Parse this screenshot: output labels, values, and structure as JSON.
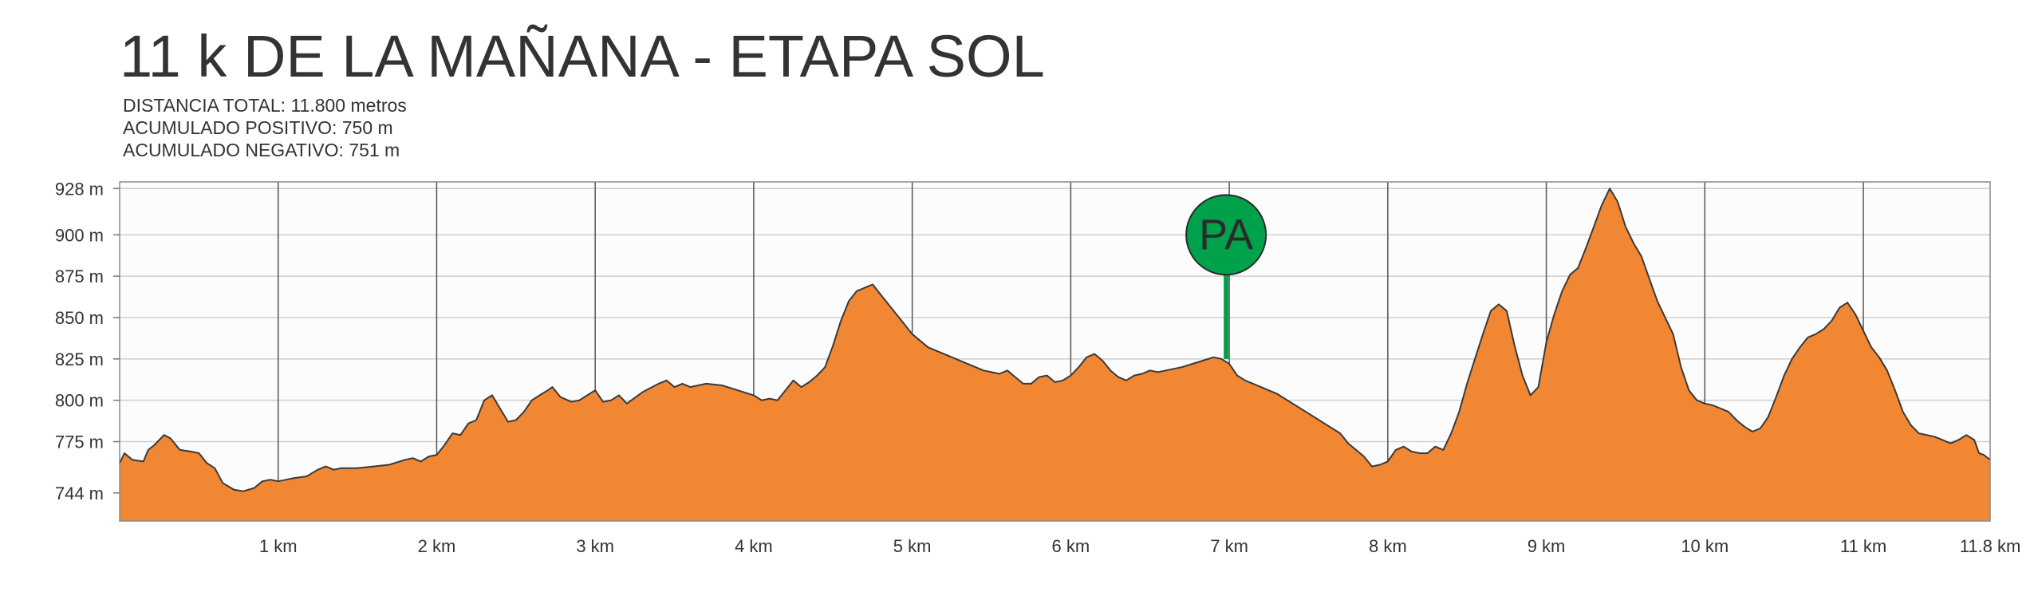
{
  "title": "11 k DE LA MAÑANA - ETAPA SOL",
  "stats": {
    "distance": "DISTANCIA TOTAL: 11.800 metros",
    "ascent": "ACUMULADO POSITIVO: 750 m",
    "descent": "ACUMULADO NEGATIVO: 751 m"
  },
  "colors": {
    "fill": "#f28733",
    "outline": "#3a3a3a",
    "grid": "#cfcfcf",
    "km_line": "#555555",
    "marker": "#00a14b",
    "plot_bg": "#fcfcfc"
  },
  "chart_data": {
    "type": "area",
    "xlim": [
      0,
      11.8
    ],
    "ylim": [
      727,
      932
    ],
    "y_ticks": [
      {
        "value": 928,
        "label": "928 m"
      },
      {
        "value": 900,
        "label": "900 m"
      },
      {
        "value": 875,
        "label": "875 m"
      },
      {
        "value": 850,
        "label": "850 m"
      },
      {
        "value": 825,
        "label": "825 m"
      },
      {
        "value": 800,
        "label": "800 m"
      },
      {
        "value": 775,
        "label": "775 m"
      },
      {
        "value": 744,
        "label": "744 m"
      }
    ],
    "x_ticks": [
      {
        "value": 1,
        "label": "1 km"
      },
      {
        "value": 2,
        "label": "2 km"
      },
      {
        "value": 3,
        "label": "3 km"
      },
      {
        "value": 4,
        "label": "4 km"
      },
      {
        "value": 5,
        "label": "5 km"
      },
      {
        "value": 6,
        "label": "6 km"
      },
      {
        "value": 7,
        "label": "7 km"
      },
      {
        "value": 8,
        "label": "8 km"
      },
      {
        "value": 9,
        "label": "9 km"
      },
      {
        "value": 10,
        "label": "10 km"
      },
      {
        "value": 11,
        "label": "11 km"
      },
      {
        "value": 11.8,
        "label": "11.8 km"
      }
    ],
    "marker": {
      "label": "PA",
      "x": 6.98,
      "y": 825
    },
    "profile": [
      [
        0.0,
        762
      ],
      [
        0.03,
        768
      ],
      [
        0.08,
        764
      ],
      [
        0.15,
        763
      ],
      [
        0.18,
        770
      ],
      [
        0.22,
        773
      ],
      [
        0.28,
        779
      ],
      [
        0.32,
        777
      ],
      [
        0.38,
        770
      ],
      [
        0.45,
        769
      ],
      [
        0.5,
        768
      ],
      [
        0.55,
        762
      ],
      [
        0.6,
        759
      ],
      [
        0.65,
        750
      ],
      [
        0.72,
        746
      ],
      [
        0.78,
        745
      ],
      [
        0.85,
        747
      ],
      [
        0.9,
        751
      ],
      [
        0.95,
        752
      ],
      [
        1.0,
        751
      ],
      [
        1.05,
        752
      ],
      [
        1.1,
        753
      ],
      [
        1.18,
        754
      ],
      [
        1.25,
        758
      ],
      [
        1.3,
        760
      ],
      [
        1.35,
        758
      ],
      [
        1.4,
        759
      ],
      [
        1.5,
        759
      ],
      [
        1.6,
        760
      ],
      [
        1.7,
        761
      ],
      [
        1.8,
        764
      ],
      [
        1.85,
        765
      ],
      [
        1.9,
        763
      ],
      [
        1.95,
        766
      ],
      [
        2.0,
        767
      ],
      [
        2.05,
        773
      ],
      [
        2.1,
        780
      ],
      [
        2.15,
        779
      ],
      [
        2.2,
        786
      ],
      [
        2.25,
        788
      ],
      [
        2.3,
        800
      ],
      [
        2.35,
        803
      ],
      [
        2.4,
        795
      ],
      [
        2.45,
        787
      ],
      [
        2.5,
        788
      ],
      [
        2.55,
        793
      ],
      [
        2.6,
        800
      ],
      [
        2.65,
        803
      ],
      [
        2.7,
        806
      ],
      [
        2.73,
        808
      ],
      [
        2.78,
        802
      ],
      [
        2.85,
        799
      ],
      [
        2.9,
        800
      ],
      [
        2.95,
        803
      ],
      [
        3.0,
        806
      ],
      [
        3.05,
        799
      ],
      [
        3.1,
        800
      ],
      [
        3.15,
        803
      ],
      [
        3.2,
        798
      ],
      [
        3.3,
        805
      ],
      [
        3.4,
        810
      ],
      [
        3.45,
        812
      ],
      [
        3.5,
        808
      ],
      [
        3.55,
        810
      ],
      [
        3.6,
        808
      ],
      [
        3.7,
        810
      ],
      [
        3.8,
        809
      ],
      [
        3.9,
        806
      ],
      [
        4.0,
        803
      ],
      [
        4.05,
        800
      ],
      [
        4.1,
        801
      ],
      [
        4.15,
        800
      ],
      [
        4.2,
        806
      ],
      [
        4.25,
        812
      ],
      [
        4.3,
        808
      ],
      [
        4.35,
        811
      ],
      [
        4.4,
        815
      ],
      [
        4.45,
        820
      ],
      [
        4.5,
        833
      ],
      [
        4.55,
        848
      ],
      [
        4.6,
        860
      ],
      [
        4.65,
        866
      ],
      [
        4.7,
        868
      ],
      [
        4.75,
        870
      ],
      [
        4.8,
        864
      ],
      [
        4.85,
        858
      ],
      [
        4.9,
        852
      ],
      [
        4.95,
        846
      ],
      [
        5.0,
        840
      ],
      [
        5.1,
        832
      ],
      [
        5.2,
        828
      ],
      [
        5.3,
        824
      ],
      [
        5.4,
        820
      ],
      [
        5.45,
        818
      ],
      [
        5.5,
        817
      ],
      [
        5.55,
        816
      ],
      [
        5.6,
        818
      ],
      [
        5.65,
        814
      ],
      [
        5.7,
        810
      ],
      [
        5.75,
        810
      ],
      [
        5.8,
        814
      ],
      [
        5.85,
        815
      ],
      [
        5.9,
        811
      ],
      [
        5.95,
        812
      ],
      [
        6.0,
        815
      ],
      [
        6.05,
        820
      ],
      [
        6.1,
        826
      ],
      [
        6.15,
        828
      ],
      [
        6.2,
        824
      ],
      [
        6.25,
        818
      ],
      [
        6.3,
        814
      ],
      [
        6.35,
        812
      ],
      [
        6.4,
        815
      ],
      [
        6.45,
        816
      ],
      [
        6.5,
        818
      ],
      [
        6.55,
        817
      ],
      [
        6.6,
        818
      ],
      [
        6.7,
        820
      ],
      [
        6.8,
        823
      ],
      [
        6.9,
        826
      ],
      [
        6.95,
        825
      ],
      [
        7.0,
        822
      ],
      [
        7.05,
        815
      ],
      [
        7.1,
        812
      ],
      [
        7.15,
        810
      ],
      [
        7.2,
        808
      ],
      [
        7.3,
        804
      ],
      [
        7.4,
        798
      ],
      [
        7.5,
        792
      ],
      [
        7.6,
        786
      ],
      [
        7.7,
        780
      ],
      [
        7.75,
        774
      ],
      [
        7.8,
        770
      ],
      [
        7.85,
        766
      ],
      [
        7.9,
        760
      ],
      [
        7.95,
        761
      ],
      [
        8.0,
        763
      ],
      [
        8.05,
        770
      ],
      [
        8.1,
        772
      ],
      [
        8.15,
        769
      ],
      [
        8.2,
        768
      ],
      [
        8.25,
        768
      ],
      [
        8.3,
        772
      ],
      [
        8.35,
        770
      ],
      [
        8.4,
        780
      ],
      [
        8.45,
        793
      ],
      [
        8.5,
        810
      ],
      [
        8.55,
        825
      ],
      [
        8.6,
        840
      ],
      [
        8.65,
        854
      ],
      [
        8.7,
        858
      ],
      [
        8.75,
        854
      ],
      [
        8.8,
        833
      ],
      [
        8.85,
        815
      ],
      [
        8.9,
        803
      ],
      [
        8.95,
        808
      ],
      [
        9.0,
        835
      ],
      [
        9.05,
        852
      ],
      [
        9.1,
        866
      ],
      [
        9.15,
        876
      ],
      [
        9.2,
        880
      ],
      [
        9.25,
        892
      ],
      [
        9.3,
        905
      ],
      [
        9.35,
        918
      ],
      [
        9.4,
        928
      ],
      [
        9.45,
        920
      ],
      [
        9.5,
        905
      ],
      [
        9.55,
        895
      ],
      [
        9.6,
        887
      ],
      [
        9.7,
        860
      ],
      [
        9.8,
        840
      ],
      [
        9.85,
        820
      ],
      [
        9.9,
        806
      ],
      [
        9.95,
        800
      ],
      [
        10.0,
        798
      ],
      [
        10.05,
        797
      ],
      [
        10.1,
        795
      ],
      [
        10.15,
        793
      ],
      [
        10.2,
        788
      ],
      [
        10.25,
        784
      ],
      [
        10.3,
        781
      ],
      [
        10.35,
        783
      ],
      [
        10.4,
        790
      ],
      [
        10.45,
        802
      ],
      [
        10.5,
        815
      ],
      [
        10.55,
        825
      ],
      [
        10.6,
        832
      ],
      [
        10.65,
        838
      ],
      [
        10.7,
        840
      ],
      [
        10.75,
        843
      ],
      [
        10.8,
        848
      ],
      [
        10.85,
        856
      ],
      [
        10.9,
        859
      ],
      [
        10.95,
        852
      ],
      [
        11.0,
        842
      ],
      [
        11.05,
        832
      ],
      [
        11.1,
        826
      ],
      [
        11.15,
        818
      ],
      [
        11.2,
        806
      ],
      [
        11.25,
        793
      ],
      [
        11.3,
        785
      ],
      [
        11.35,
        780
      ],
      [
        11.4,
        779
      ],
      [
        11.45,
        778
      ],
      [
        11.5,
        776
      ],
      [
        11.55,
        774
      ],
      [
        11.6,
        776
      ],
      [
        11.65,
        779
      ],
      [
        11.7,
        776
      ],
      [
        11.73,
        768
      ],
      [
        11.76,
        767
      ],
      [
        11.8,
        764
      ]
    ]
  }
}
